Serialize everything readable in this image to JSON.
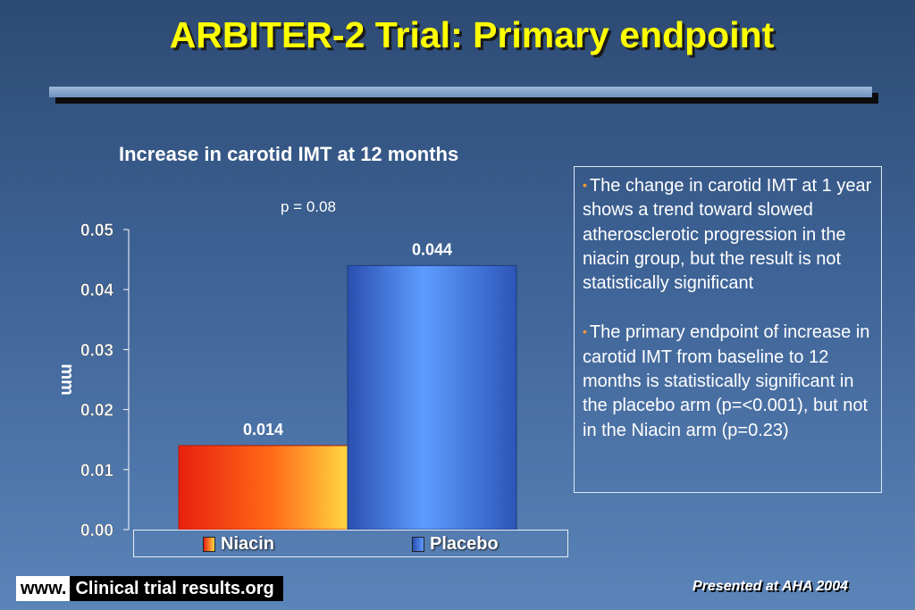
{
  "title": "ARBITER-2 Trial: Primary endpoint",
  "chart_data": {
    "type": "bar",
    "title": "Increase in carotid IMT at 12 months",
    "annotation": "p = 0.08",
    "ylabel": "mm",
    "xlabel": "",
    "ylim": [
      0,
      0.05
    ],
    "yticks": [
      "0.05",
      "0.04",
      "0.03",
      "0.02",
      "0.01",
      "0.00"
    ],
    "categories": [
      "Niacin",
      "Placebo"
    ],
    "values": [
      0.014,
      0.044
    ],
    "value_labels": [
      "0.014",
      "0.044"
    ],
    "legend": [
      "Niacin",
      "Placebo"
    ],
    "legend_placement": "bottom",
    "colors": {
      "Niacin": "#f2401a",
      "Placebo": "#3f6fd8"
    },
    "grid": false
  },
  "notes": [
    "The change in carotid IMT at 1 year shows a trend toward slowed atherosclerotic progression in the niacin group, but the result is not statistically significant",
    "The primary endpoint of increase in carotid IMT from baseline to 12 months is statistically significant in the placebo arm (p=<0.001), but not in the Niacin arm (p=0.23)"
  ],
  "footer": {
    "www": "www.",
    "site": "Clinical trial results.org",
    "presented": "Presented at AHA 2004"
  }
}
